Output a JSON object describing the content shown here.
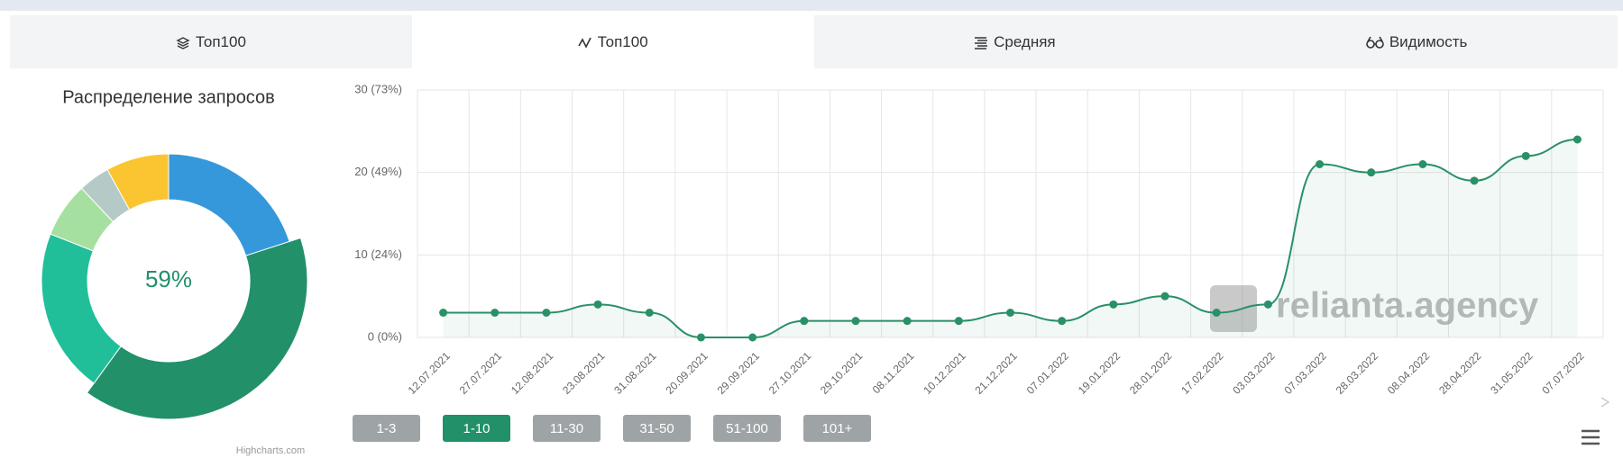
{
  "tabs": [
    "Топ100",
    "Топ100",
    "Средняя",
    "Видимость"
  ],
  "range_buttons": [
    "1-3",
    "1-10",
    "11-30",
    "31-50",
    "51-100",
    "101+"
  ],
  "chart_data": [
    {
      "type": "pie",
      "title": "Распределение запросов",
      "center_label": "59%",
      "credit": "Highcharts.com",
      "values": [
        20,
        40,
        21,
        7,
        4,
        8
      ],
      "colors": [
        "#3498db",
        "#229069",
        "#20bf9a",
        "#a6e0a0",
        "#b5c9c6",
        "#fbc531"
      ]
    },
    {
      "type": "line",
      "watermark": "relianta.agency",
      "categories": [
        "12.07.2021",
        "27.07.2021",
        "12.08.2021",
        "23.08.2021",
        "31.08.2021",
        "20.09.2021",
        "29.09.2021",
        "27.10.2021",
        "29.10.2021",
        "08.11.2021",
        "10.12.2021",
        "21.12.2021",
        "07.01.2022",
        "19.01.2022",
        "28.01.2022",
        "17.02.2022",
        "03.03.2022",
        "07.03.2022",
        "28.03.2022",
        "08.04.2022",
        "28.04.2022",
        "31.05.2022",
        "07.07.2022"
      ],
      "values": [
        3,
        3,
        3,
        4,
        3,
        0,
        0,
        2,
        2,
        2,
        2,
        3,
        2,
        4,
        5,
        3,
        4,
        21,
        20,
        21,
        19,
        22,
        24
      ],
      "color": "#2a9067",
      "ylim": [
        0,
        30
      ],
      "yticks": [
        {
          "value": 0,
          "label": "0 (0%)"
        },
        {
          "value": 10,
          "label": "10 (24%)"
        },
        {
          "value": 20,
          "label": "20 (49%)"
        },
        {
          "value": 30,
          "label": "30 (73%)"
        }
      ],
      "grid": true
    }
  ]
}
